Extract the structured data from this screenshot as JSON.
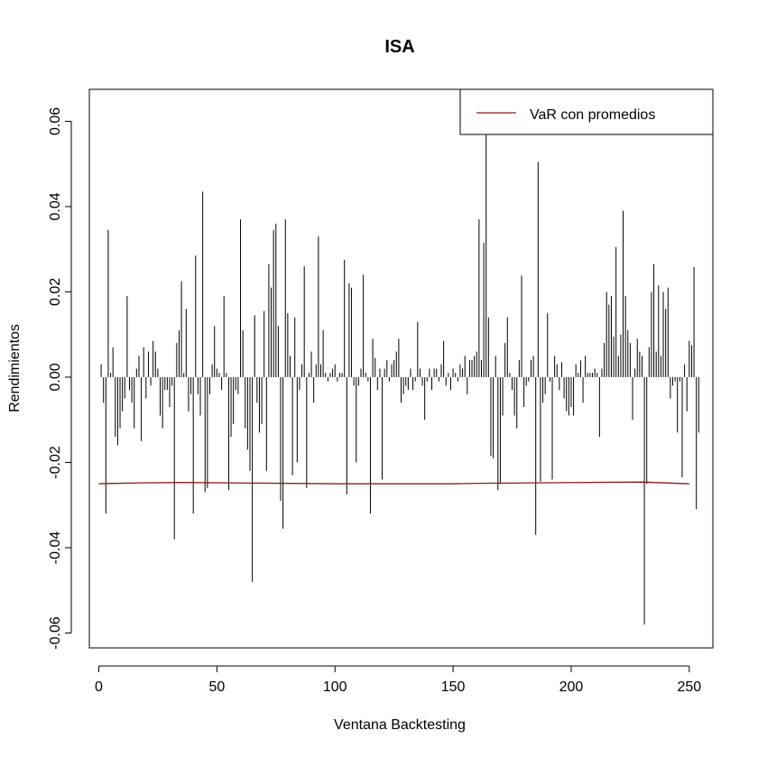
{
  "chart_data": {
    "type": "line",
    "title": "ISA",
    "xlabel": "Ventana Backtesting",
    "ylabel": "Rendimientos",
    "xlim": [
      -4,
      260
    ],
    "ylim": [
      -0.0635,
      0.0675
    ],
    "xticks": [
      "0",
      "50",
      "100",
      "150",
      "200",
      "250"
    ],
    "yticks": [
      "-0.06",
      "-0.04",
      "-0.02",
      "0.00",
      "0.02",
      "0.04",
      "0.06"
    ],
    "grid": false,
    "legend": {
      "position": "top-right",
      "entries": [
        {
          "label": "VaR con promedios",
          "color": "#8b1a1a"
        }
      ]
    },
    "series": [
      {
        "kind": "histogram-bars",
        "color": "#000000",
        "x_start": 1,
        "values": [
          0.003,
          -0.006,
          -0.032,
          0.0345,
          0.001,
          0.007,
          -0.014,
          -0.016,
          -0.012,
          -0.008,
          -0.005,
          0.019,
          -0.003,
          -0.006,
          -0.012,
          0.002,
          0.005,
          -0.015,
          0.007,
          -0.005,
          0.006,
          -0.002,
          0.0085,
          0.006,
          0.002,
          -0.009,
          -0.012,
          -0.003,
          -0.003,
          -0.007,
          -0.002,
          -0.038,
          0.008,
          0.011,
          0.0225,
          0.001,
          0.016,
          -0.008,
          -0.004,
          -0.032,
          0.0285,
          -0.004,
          -0.009,
          0.0435,
          -0.027,
          -0.026,
          -0.004,
          0.003,
          0.012,
          0.002,
          0.001,
          -0.003,
          0.019,
          0.001,
          -0.0265,
          -0.014,
          -0.011,
          -0.003,
          -0.004,
          0.037,
          0.011,
          -0.012,
          -0.017,
          -0.022,
          -0.048,
          0.0145,
          -0.006,
          -0.013,
          -0.011,
          0.0155,
          -0.022,
          0.0265,
          0.021,
          0.0345,
          0.036,
          0.012,
          -0.029,
          -0.0355,
          0.037,
          0.015,
          0.005,
          -0.023,
          0.014,
          -0.02,
          -0.003,
          0.003,
          0.026,
          -0.026,
          0.001,
          0.006,
          -0.006,
          0.003,
          0.033,
          0.003,
          0.011,
          0.001,
          -0.001,
          0.001,
          0.002,
          0.003,
          -0.001,
          0.001,
          0.001,
          0.0275,
          -0.0275,
          0.022,
          0.021,
          -0.002,
          -0.02,
          -0.002,
          0.002,
          0.024,
          0.001,
          -0.001,
          -0.032,
          0.009,
          0.0045,
          -0.003,
          0.002,
          -0.024,
          0.002,
          0.004,
          -0.001,
          0.003,
          0.004,
          0.006,
          0.009,
          -0.006,
          -0.004,
          -0.002,
          -0.003,
          0.002,
          -0.003,
          -0.001,
          0.013,
          0.002,
          -0.002,
          -0.01,
          -0.001,
          0.002,
          -0.003,
          0.002,
          0.002,
          -0.001,
          0.003,
          0.0085,
          -0.002,
          0.001,
          -0.003,
          0.002,
          0.001,
          -0.001,
          0.003,
          0.002,
          0.005,
          -0.004,
          0.004,
          0.004,
          0.005,
          0.006,
          0.037,
          0.004,
          0.0315,
          0.062,
          0.014,
          -0.0185,
          -0.019,
          0.005,
          -0.0265,
          -0.025,
          -0.009,
          0.008,
          0.014,
          0.001,
          -0.003,
          -0.009,
          -0.012,
          0.004,
          0.0238,
          -0.007,
          -0.002,
          -0.001,
          0.004,
          0.005,
          -0.037,
          0.0505,
          -0.0245,
          -0.006,
          -0.004,
          0.015,
          -0.001,
          -0.024,
          0.005,
          0.003,
          -0.003,
          0.0035,
          -0.005,
          -0.008,
          -0.009,
          -0.007,
          -0.009,
          0.003,
          0.001,
          0.004,
          -0.006,
          0.005,
          0.001,
          0.001,
          0.001,
          0.002,
          0.001,
          -0.014,
          0.002,
          0.008,
          0.02,
          0.017,
          0.019,
          0.0095,
          0.0305,
          0.005,
          0.01,
          0.039,
          0.019,
          0.011,
          0.008,
          -0.01,
          0.002,
          0.009,
          0.006,
          0.005,
          -0.058,
          -0.025,
          0.007,
          0.02,
          0.0265,
          0.006,
          0.0215,
          0.005,
          0.02,
          0.016,
          0.021,
          -0.005,
          -0.002,
          -0.001,
          -0.013,
          -0.001,
          -0.0235,
          0.003,
          -0.008,
          0.0085,
          0.0075,
          0.0258,
          -0.031,
          -0.013
        ]
      },
      {
        "kind": "line",
        "name": "VaR con promedios",
        "color": "#8b1a1a",
        "x": [
          0,
          17,
          35,
          100,
          150,
          160,
          230,
          250
        ],
        "values": [
          -0.025,
          -0.0248,
          -0.0247,
          -0.025,
          -0.025,
          -0.0249,
          -0.0246,
          -0.025
        ]
      }
    ]
  }
}
